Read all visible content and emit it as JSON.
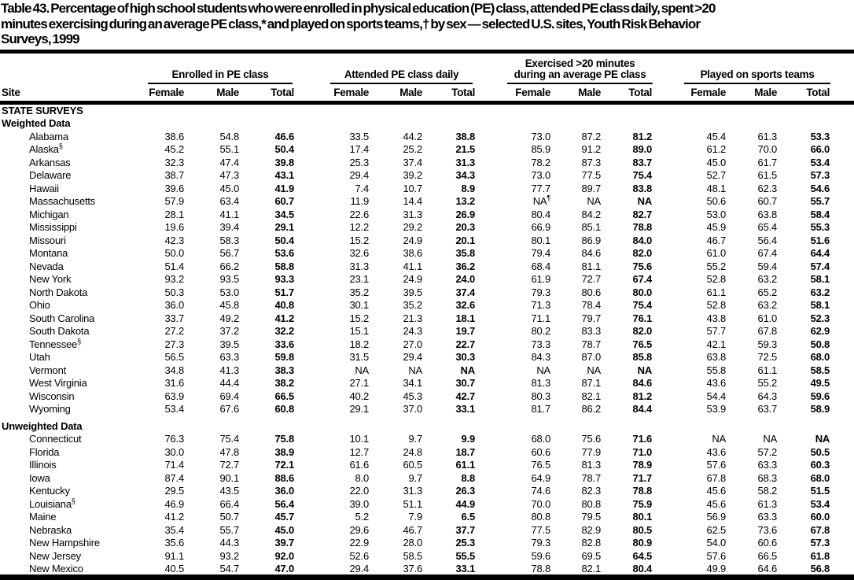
{
  "title_lines": [
    "Table 43. Percentage of high school students who were enrolled in physical education (PE) class, attended PE class daily, spent >20",
    "minutes exercising during an average PE class,* and played on sports teams,† by sex — selected U.S. sites, Youth Risk Behavior",
    "Surveys, 1999"
  ],
  "table": {
    "site_header": "Site",
    "groups": [
      {
        "label": "Enrolled in PE class"
      },
      {
        "label": "Attended PE class daily"
      },
      {
        "label_line1": "Exercised >20 minutes",
        "label_line2": "during an average PE class"
      },
      {
        "label": "Played on sports teams"
      }
    ],
    "sub_headers": [
      "Female",
      "Male",
      "Total"
    ],
    "rows": [
      {
        "type": "heading",
        "label": "STATE SURVEYS"
      },
      {
        "type": "heading",
        "label": "Weighted Data"
      },
      {
        "type": "data",
        "site": "Alabama",
        "values": [
          "38.6",
          "54.8",
          "46.6",
          "33.5",
          "44.2",
          "38.8",
          "73.0",
          "87.2",
          "81.2",
          "45.4",
          "61.3",
          "53.3"
        ]
      },
      {
        "type": "data",
        "site": "Alaska",
        "sup": "§",
        "values": [
          "45.2",
          "55.1",
          "50.4",
          "17.4",
          "25.2",
          "21.5",
          "85.9",
          "91.2",
          "89.0",
          "61.2",
          "70.0",
          "66.0"
        ]
      },
      {
        "type": "data",
        "site": "Arkansas",
        "values": [
          "32.3",
          "47.4",
          "39.8",
          "25.3",
          "37.4",
          "31.3",
          "78.2",
          "87.3",
          "83.7",
          "45.0",
          "61.7",
          "53.4"
        ]
      },
      {
        "type": "data",
        "site": "Delaware",
        "values": [
          "38.7",
          "47.3",
          "43.1",
          "29.4",
          "39.2",
          "34.3",
          "73.0",
          "77.5",
          "75.4",
          "52.7",
          "61.5",
          "57.3"
        ]
      },
      {
        "type": "data",
        "site": "Hawaii",
        "values": [
          "39.6",
          "45.0",
          "41.9",
          "7.4",
          "10.7",
          "8.9",
          "77.7",
          "89.7",
          "83.8",
          "48.1",
          "62.3",
          "54.6"
        ]
      },
      {
        "type": "data",
        "site": "Massachusetts",
        "values": [
          "57.9",
          "63.4",
          "60.7",
          "11.9",
          "14.4",
          "13.2",
          "NA¶",
          "NA",
          "NA",
          "50.6",
          "60.7",
          "55.7"
        ]
      },
      {
        "type": "data",
        "site": "Michigan",
        "values": [
          "28.1",
          "41.1",
          "34.5",
          "22.6",
          "31.3",
          "26.9",
          "80.4",
          "84.2",
          "82.7",
          "53.0",
          "63.8",
          "58.4"
        ]
      },
      {
        "type": "data",
        "site": "Mississippi",
        "values": [
          "19.6",
          "39.4",
          "29.1",
          "12.2",
          "29.2",
          "20.3",
          "66.9",
          "85.1",
          "78.8",
          "45.9",
          "65.4",
          "55.3"
        ]
      },
      {
        "type": "data",
        "site": "Missouri",
        "values": [
          "42.3",
          "58.3",
          "50.4",
          "15.2",
          "24.9",
          "20.1",
          "80.1",
          "86.9",
          "84.0",
          "46.7",
          "56.4",
          "51.6"
        ]
      },
      {
        "type": "data",
        "site": "Montana",
        "values": [
          "50.0",
          "56.7",
          "53.6",
          "32.6",
          "38.6",
          "35.8",
          "79.4",
          "84.6",
          "82.0",
          "61.0",
          "67.4",
          "64.4"
        ]
      },
      {
        "type": "data",
        "site": "Nevada",
        "values": [
          "51.4",
          "66.2",
          "58.8",
          "31.3",
          "41.1",
          "36.2",
          "68.4",
          "81.1",
          "75.6",
          "55.2",
          "59.4",
          "57.4"
        ]
      },
      {
        "type": "data",
        "site": "New York",
        "values": [
          "93.2",
          "93.5",
          "93.3",
          "23.1",
          "24.9",
          "24.0",
          "61.9",
          "72.7",
          "67.4",
          "52.8",
          "63.2",
          "58.1"
        ]
      },
      {
        "type": "data",
        "site": "North Dakota",
        "values": [
          "50.3",
          "53.0",
          "51.7",
          "35.2",
          "39.5",
          "37.4",
          "79.3",
          "80.6",
          "80.0",
          "61.1",
          "65.2",
          "63.2"
        ]
      },
      {
        "type": "data",
        "site": "Ohio",
        "values": [
          "36.0",
          "45.8",
          "40.8",
          "30.1",
          "35.2",
          "32.6",
          "71.3",
          "78.4",
          "75.4",
          "52.8",
          "63.2",
          "58.1"
        ]
      },
      {
        "type": "data",
        "site": "South Carolina",
        "values": [
          "33.7",
          "49.2",
          "41.2",
          "15.2",
          "21.3",
          "18.1",
          "71.1",
          "79.7",
          "76.1",
          "43.8",
          "61.0",
          "52.3"
        ]
      },
      {
        "type": "data",
        "site": "South Dakota",
        "values": [
          "27.2",
          "37.2",
          "32.2",
          "15.1",
          "24.3",
          "19.7",
          "80.2",
          "83.3",
          "82.0",
          "57.7",
          "67.8",
          "62.9"
        ]
      },
      {
        "type": "data",
        "site": "Tennessee",
        "sup": "§",
        "values": [
          "27.3",
          "39.5",
          "33.6",
          "18.2",
          "27.0",
          "22.7",
          "73.3",
          "78.7",
          "76.5",
          "42.1",
          "59.3",
          "50.8"
        ]
      },
      {
        "type": "data",
        "site": "Utah",
        "values": [
          "56.5",
          "63.3",
          "59.8",
          "31.5",
          "29.4",
          "30.3",
          "84.3",
          "87.0",
          "85.8",
          "63.8",
          "72.5",
          "68.0"
        ]
      },
      {
        "type": "data",
        "site": "Vermont",
        "values": [
          "34.8",
          "41.3",
          "38.3",
          "NA",
          "NA",
          "NA",
          "NA",
          "NA",
          "NA",
          "55.8",
          "61.1",
          "58.5"
        ]
      },
      {
        "type": "data",
        "site": "West Virginia",
        "values": [
          "31.6",
          "44.4",
          "38.2",
          "27.1",
          "34.1",
          "30.7",
          "81.3",
          "87.1",
          "84.6",
          "43.6",
          "55.2",
          "49.5"
        ]
      },
      {
        "type": "data",
        "site": "Wisconsin",
        "values": [
          "63.9",
          "69.4",
          "66.5",
          "40.2",
          "45.3",
          "42.7",
          "80.3",
          "82.1",
          "81.2",
          "54.4",
          "64.3",
          "59.6"
        ]
      },
      {
        "type": "data",
        "site": "Wyoming",
        "values": [
          "53.4",
          "67.6",
          "60.8",
          "29.1",
          "37.0",
          "33.1",
          "81.7",
          "86.2",
          "84.4",
          "53.9",
          "63.7",
          "58.9"
        ]
      },
      {
        "type": "heading",
        "label": "Unweighted Data",
        "gap_above": true
      },
      {
        "type": "data",
        "site": "Connecticut",
        "values": [
          "76.3",
          "75.4",
          "75.8",
          "10.1",
          "9.7",
          "9.9",
          "68.0",
          "75.6",
          "71.6",
          "NA",
          "NA",
          "NA"
        ]
      },
      {
        "type": "data",
        "site": "Florida",
        "values": [
          "30.0",
          "47.8",
          "38.9",
          "12.7",
          "24.8",
          "18.7",
          "60.6",
          "77.9",
          "71.0",
          "43.6",
          "57.2",
          "50.5"
        ]
      },
      {
        "type": "data",
        "site": "Illinois",
        "values": [
          "71.4",
          "72.7",
          "72.1",
          "61.6",
          "60.5",
          "61.1",
          "76.5",
          "81.3",
          "78.9",
          "57.6",
          "63.3",
          "60.3"
        ]
      },
      {
        "type": "data",
        "site": "Iowa",
        "values": [
          "87.4",
          "90.1",
          "88.6",
          "8.0",
          "9.7",
          "8.8",
          "64.9",
          "78.7",
          "71.7",
          "67.8",
          "68.3",
          "68.0"
        ]
      },
      {
        "type": "data",
        "site": "Kentucky",
        "values": [
          "29.5",
          "43.5",
          "36.0",
          "22.0",
          "31.3",
          "26.3",
          "74.6",
          "82.3",
          "78.8",
          "45.6",
          "58.2",
          "51.5"
        ]
      },
      {
        "type": "data",
        "site": "Louisiana",
        "sup": "§",
        "values": [
          "46.9",
          "66.4",
          "56.4",
          "39.0",
          "51.1",
          "44.9",
          "70.0",
          "80.8",
          "75.9",
          "45.6",
          "61.3",
          "53.4"
        ]
      },
      {
        "type": "data",
        "site": "Maine",
        "values": [
          "41.2",
          "50.7",
          "45.7",
          "5.2",
          "7.9",
          "6.5",
          "80.8",
          "79.5",
          "80.1",
          "56.9",
          "63.3",
          "60.0"
        ]
      },
      {
        "type": "data",
        "site": "Nebraska",
        "values": [
          "35.4",
          "55.7",
          "45.0",
          "29.6",
          "46.7",
          "37.7",
          "77.5",
          "82.9",
          "80.5",
          "62.5",
          "73.6",
          "67.8"
        ]
      },
      {
        "type": "data",
        "site": "New Hampshire",
        "values": [
          "35.6",
          "44.3",
          "39.7",
          "22.9",
          "28.0",
          "25.3",
          "79.3",
          "82.8",
          "80.9",
          "54.0",
          "60.6",
          "57.3"
        ]
      },
      {
        "type": "data",
        "site": "New Jersey",
        "values": [
          "91.1",
          "93.2",
          "92.0",
          "52.6",
          "58.5",
          "55.5",
          "59.6",
          "69.5",
          "64.5",
          "57.6",
          "66.5",
          "61.8"
        ]
      },
      {
        "type": "data",
        "site": "New Mexico",
        "values": [
          "40.5",
          "54.7",
          "47.0",
          "29.4",
          "37.6",
          "33.1",
          "78.8",
          "82.1",
          "80.4",
          "49.9",
          "64.6",
          "56.8"
        ]
      }
    ]
  }
}
